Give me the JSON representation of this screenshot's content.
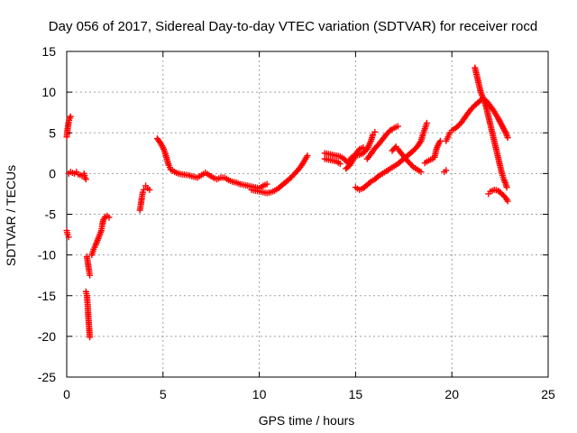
{
  "chart_data": {
    "type": "scatter",
    "title": "Day 056 of 2017, Sidereal Day-to-day VTEC variation (SDTVAR) for receiver rocd",
    "xlabel": "GPS time / hours",
    "ylabel": "SDTVAR / TECUs",
    "xlim": [
      0,
      25
    ],
    "ylim": [
      -25,
      15
    ],
    "x_ticks": [
      0,
      5,
      10,
      15,
      20,
      25
    ],
    "y_ticks": [
      -25,
      -20,
      -15,
      -10,
      -5,
      0,
      5,
      10,
      15
    ],
    "grid": true,
    "marker": "+",
    "color": "#ff0000",
    "segments": [
      {
        "name": "s1",
        "points": [
          [
            0.0,
            4.5
          ],
          [
            0.05,
            5.5
          ],
          [
            0.1,
            6.3
          ],
          [
            0.15,
            6.8
          ],
          [
            0.2,
            7.0
          ]
        ]
      },
      {
        "name": "s2",
        "points": [
          [
            0.0,
            -7.0
          ],
          [
            0.05,
            -7.5
          ],
          [
            0.1,
            -7.8
          ]
        ]
      },
      {
        "name": "s3",
        "points": [
          [
            0.1,
            0.0
          ],
          [
            0.2,
            0.2
          ],
          [
            0.3,
            0.1
          ],
          [
            0.4,
            0.0
          ],
          [
            0.5,
            0.2
          ],
          [
            0.6,
            -0.1
          ],
          [
            0.7,
            -0.2
          ],
          [
            0.8,
            -0.3
          ]
        ]
      },
      {
        "name": "s4",
        "points": [
          [
            0.9,
            0.0
          ],
          [
            0.95,
            -0.5
          ],
          [
            1.0,
            -0.7
          ]
        ]
      },
      {
        "name": "s5",
        "points": [
          [
            1.0,
            -14.5
          ],
          [
            1.05,
            -15.0
          ],
          [
            1.1,
            -16.5
          ],
          [
            1.12,
            -17.5
          ],
          [
            1.15,
            -18.5
          ],
          [
            1.18,
            -19.5
          ],
          [
            1.2,
            -20.1
          ]
        ]
      },
      {
        "name": "s6",
        "points": [
          [
            1.05,
            -10.2
          ],
          [
            1.1,
            -11.0
          ],
          [
            1.15,
            -11.8
          ],
          [
            1.2,
            -12.5
          ]
        ]
      },
      {
        "name": "s7",
        "points": [
          [
            1.3,
            -10.0
          ],
          [
            1.4,
            -9.3
          ],
          [
            1.5,
            -8.8
          ],
          [
            1.6,
            -8.2
          ],
          [
            1.7,
            -7.6
          ],
          [
            1.8,
            -7.0
          ],
          [
            1.85,
            -6.3
          ],
          [
            1.9,
            -5.7
          ],
          [
            2.0,
            -5.3
          ],
          [
            2.1,
            -5.2
          ],
          [
            2.2,
            -5.4
          ]
        ]
      },
      {
        "name": "s8",
        "points": [
          [
            3.8,
            -4.5
          ],
          [
            3.85,
            -3.8
          ],
          [
            3.9,
            -3.0
          ],
          [
            3.95,
            -2.3
          ],
          [
            4.0,
            -2.0
          ]
        ]
      },
      {
        "name": "s9",
        "points": [
          [
            4.1,
            -1.5
          ],
          [
            4.2,
            -1.8
          ],
          [
            4.3,
            -2.0
          ]
        ]
      },
      {
        "name": "s10",
        "points": [
          [
            4.7,
            4.3
          ],
          [
            4.85,
            3.8
          ],
          [
            5.0,
            3.2
          ],
          [
            5.1,
            2.6
          ],
          [
            5.2,
            1.8
          ],
          [
            5.3,
            1.0
          ],
          [
            5.4,
            0.5
          ],
          [
            5.6,
            0.2
          ],
          [
            5.8,
            0.0
          ],
          [
            6.0,
            -0.1
          ],
          [
            6.3,
            -0.2
          ],
          [
            6.6,
            -0.4
          ],
          [
            6.8,
            -0.5
          ],
          [
            7.0,
            -0.2
          ],
          [
            7.2,
            0.1
          ],
          [
            7.4,
            -0.2
          ],
          [
            7.6,
            -0.5
          ],
          [
            7.8,
            -0.7
          ],
          [
            8.0,
            -0.5
          ],
          [
            8.2,
            -0.5
          ],
          [
            8.4,
            -0.8
          ],
          [
            8.6,
            -1.0
          ],
          [
            8.8,
            -1.1
          ],
          [
            9.0,
            -1.3
          ],
          [
            9.2,
            -1.4
          ],
          [
            9.4,
            -1.5
          ],
          [
            9.6,
            -1.6
          ],
          [
            9.8,
            -1.7
          ],
          [
            10.0,
            -1.8
          ],
          [
            10.2,
            -1.5
          ],
          [
            10.4,
            -1.3
          ]
        ]
      },
      {
        "name": "s11",
        "points": [
          [
            9.6,
            -2.0
          ],
          [
            9.8,
            -2.1
          ],
          [
            10.0,
            -2.2
          ],
          [
            10.2,
            -2.3
          ],
          [
            10.4,
            -2.4
          ],
          [
            10.6,
            -2.3
          ],
          [
            10.8,
            -2.1
          ],
          [
            11.0,
            -1.8
          ],
          [
            11.2,
            -1.4
          ],
          [
            11.4,
            -1.0
          ],
          [
            11.6,
            -0.6
          ],
          [
            11.8,
            -0.1
          ],
          [
            12.0,
            0.4
          ],
          [
            12.2,
            1.0
          ],
          [
            12.35,
            1.6
          ],
          [
            12.5,
            2.2
          ]
        ]
      },
      {
        "name": "s12",
        "points": [
          [
            13.4,
            2.5
          ],
          [
            13.6,
            2.4
          ],
          [
            13.8,
            2.3
          ],
          [
            14.0,
            2.2
          ],
          [
            14.2,
            2.1
          ],
          [
            14.4,
            1.8
          ],
          [
            14.6,
            1.3
          ],
          [
            14.8,
            2.0
          ],
          [
            15.0,
            2.2
          ],
          [
            15.2,
            2.3
          ],
          [
            15.4,
            2.5
          ],
          [
            15.6,
            3.0
          ],
          [
            15.8,
            4.0
          ],
          [
            15.9,
            4.8
          ],
          [
            16.0,
            5.1
          ]
        ]
      },
      {
        "name": "s13",
        "points": [
          [
            13.4,
            1.8
          ],
          [
            13.6,
            1.7
          ],
          [
            13.8,
            1.6
          ],
          [
            14.0,
            1.5
          ],
          [
            14.2,
            1.2
          ]
        ]
      },
      {
        "name": "s14",
        "points": [
          [
            14.5,
            0.6
          ],
          [
            14.7,
            1.0
          ],
          [
            14.9,
            1.8
          ],
          [
            15.0,
            2.4
          ],
          [
            15.2,
            3.0
          ],
          [
            15.4,
            3.2
          ]
        ]
      },
      {
        "name": "s15",
        "points": [
          [
            15.0,
            -1.7
          ],
          [
            15.2,
            -2.0
          ],
          [
            15.4,
            -1.8
          ],
          [
            15.6,
            -1.4
          ],
          [
            15.8,
            -1.0
          ],
          [
            16.0,
            -0.7
          ],
          [
            16.2,
            -0.3
          ],
          [
            16.4,
            0.0
          ],
          [
            16.6,
            0.3
          ],
          [
            16.8,
            0.6
          ],
          [
            17.0,
            0.9
          ],
          [
            17.2,
            1.2
          ],
          [
            17.4,
            1.6
          ],
          [
            17.6,
            2.0
          ],
          [
            17.8,
            2.4
          ],
          [
            18.0,
            2.8
          ],
          [
            18.2,
            3.3
          ],
          [
            18.4,
            4.0
          ],
          [
            18.5,
            4.8
          ],
          [
            18.6,
            5.5
          ],
          [
            18.7,
            6.2
          ]
        ]
      },
      {
        "name": "s16",
        "points": [
          [
            15.6,
            1.8
          ],
          [
            15.8,
            2.4
          ],
          [
            16.0,
            3.1
          ],
          [
            16.2,
            3.6
          ],
          [
            16.4,
            4.2
          ],
          [
            16.6,
            4.8
          ],
          [
            16.8,
            5.3
          ],
          [
            17.0,
            5.6
          ],
          [
            17.2,
            5.8
          ]
        ]
      },
      {
        "name": "s17",
        "points": [
          [
            16.9,
            2.8
          ],
          [
            17.1,
            3.3
          ],
          [
            17.2,
            3.0
          ],
          [
            17.4,
            2.4
          ],
          [
            17.6,
            1.8
          ],
          [
            17.8,
            1.3
          ],
          [
            18.0,
            0.8
          ],
          [
            18.2,
            0.5
          ],
          [
            18.4,
            0.2
          ]
        ]
      },
      {
        "name": "s18",
        "points": [
          [
            18.6,
            1.3
          ],
          [
            18.8,
            1.6
          ],
          [
            19.0,
            1.8
          ]
        ]
      },
      {
        "name": "s19",
        "points": [
          [
            19.1,
            2.0
          ],
          [
            19.2,
            3.0
          ],
          [
            19.3,
            3.6
          ],
          [
            19.4,
            4.0
          ]
        ]
      },
      {
        "name": "s20",
        "points": [
          [
            19.6,
            0.2
          ],
          [
            19.7,
            0.4
          ]
        ]
      },
      {
        "name": "s21",
        "points": [
          [
            19.7,
            4.0
          ],
          [
            19.8,
            4.5
          ],
          [
            19.9,
            5.0
          ],
          [
            20.0,
            5.3
          ],
          [
            20.2,
            5.6
          ],
          [
            20.4,
            6.0
          ],
          [
            20.6,
            6.6
          ],
          [
            20.8,
            7.3
          ],
          [
            21.0,
            7.9
          ],
          [
            21.2,
            8.4
          ],
          [
            21.4,
            8.8
          ],
          [
            21.6,
            9.2
          ],
          [
            21.8,
            8.9
          ],
          [
            22.0,
            8.3
          ],
          [
            22.2,
            7.6
          ],
          [
            22.4,
            6.8
          ],
          [
            22.6,
            5.9
          ],
          [
            22.8,
            5.0
          ],
          [
            22.9,
            4.4
          ]
        ]
      },
      {
        "name": "s22",
        "points": [
          [
            21.2,
            13.0
          ],
          [
            21.3,
            12.0
          ],
          [
            21.4,
            11.0
          ],
          [
            21.5,
            10.0
          ],
          [
            21.6,
            9.4
          ],
          [
            21.7,
            8.8
          ],
          [
            21.8,
            8.0
          ],
          [
            21.9,
            7.0
          ],
          [
            22.0,
            6.0
          ],
          [
            22.1,
            5.0
          ],
          [
            22.2,
            4.0
          ],
          [
            22.3,
            3.0
          ],
          [
            22.4,
            2.0
          ],
          [
            22.5,
            1.0
          ],
          [
            22.6,
            0.0
          ],
          [
            22.7,
            -0.7
          ],
          [
            22.8,
            -1.3
          ],
          [
            22.85,
            -1.7
          ]
        ]
      },
      {
        "name": "s23",
        "points": [
          [
            21.9,
            -2.5
          ],
          [
            22.0,
            -2.2
          ],
          [
            22.2,
            -2.0
          ],
          [
            22.4,
            -2.1
          ],
          [
            22.6,
            -2.5
          ],
          [
            22.8,
            -3.0
          ],
          [
            22.9,
            -3.4
          ]
        ]
      }
    ]
  }
}
